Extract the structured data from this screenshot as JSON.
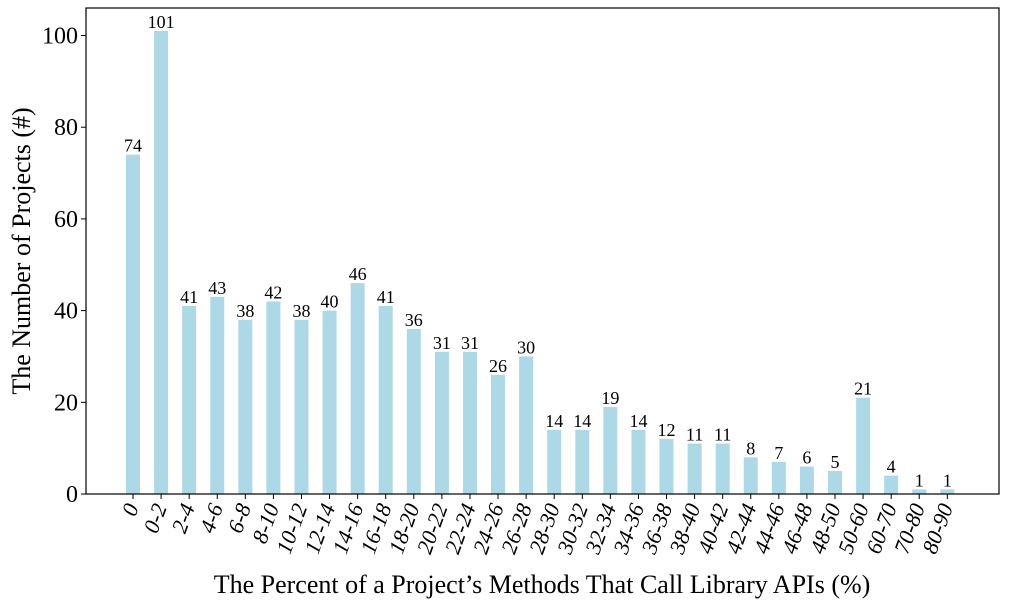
{
  "chart_data": {
    "type": "bar",
    "title": "",
    "xlabel": "The Percent of a Project’s Methods That Call Library APIs (%)",
    "ylabel": "The Number of Projects (#)",
    "categories": [
      "0",
      "0-2",
      "2-4",
      "4-6",
      "6-8",
      "8-10",
      "10-12",
      "12-14",
      "14-16",
      "16-18",
      "18-20",
      "20-22",
      "22-24",
      "24-26",
      "26-28",
      "28-30",
      "30-32",
      "32-34",
      "34-36",
      "36-38",
      "38-40",
      "40-42",
      "42-44",
      "44-46",
      "46-48",
      "48-50",
      "50-60",
      "60-70",
      "70-80",
      "80-90"
    ],
    "values": [
      74,
      101,
      41,
      43,
      38,
      42,
      38,
      40,
      46,
      41,
      36,
      31,
      31,
      26,
      30,
      14,
      14,
      19,
      14,
      12,
      11,
      11,
      8,
      7,
      6,
      5,
      21,
      4,
      1,
      1
    ],
    "ylim": [
      0,
      106
    ],
    "yticks": [
      0,
      20,
      40,
      60,
      80,
      100
    ],
    "grid": false,
    "bar_color": "#add8e6"
  }
}
